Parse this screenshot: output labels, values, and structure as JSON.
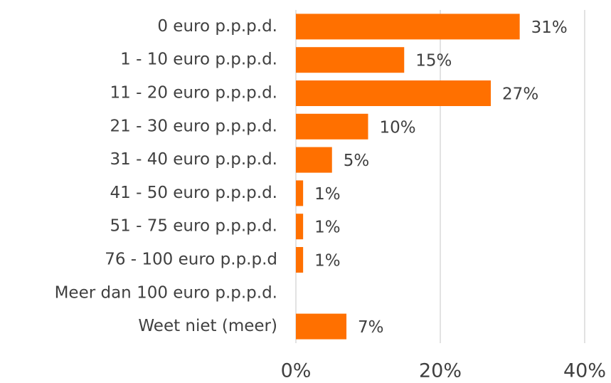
{
  "chart_data": {
    "type": "hbar",
    "categories": [
      "0 euro p.p.p.d.",
      "1 - 10 euro p.p.p.d.",
      "11 - 20 euro p.p.p.d.",
      "21 - 30 euro p.p.p.d.",
      "31 - 40 euro p.p.p.d.",
      "41 - 50 euro p.p.p.d.",
      "51 - 75 euro p.p.p.d.",
      "76 - 100 euro p.p.p.d",
      "Meer dan 100 euro p.p.p.d.",
      "Weet niet (meer)"
    ],
    "values": [
      31,
      15,
      27,
      10,
      5,
      1,
      1,
      1,
      null,
      7
    ],
    "value_labels": [
      "31%",
      "15%",
      "27%",
      "10%",
      "5%",
      "1%",
      "1%",
      "1%",
      null,
      "7%"
    ],
    "color": "#ff7000",
    "xlim": [
      0,
      40
    ],
    "xticks": [
      {
        "value": 0,
        "label": "0%"
      },
      {
        "value": 20,
        "label": "20%"
      },
      {
        "value": 40,
        "label": "40%"
      }
    ],
    "grid": true
  }
}
